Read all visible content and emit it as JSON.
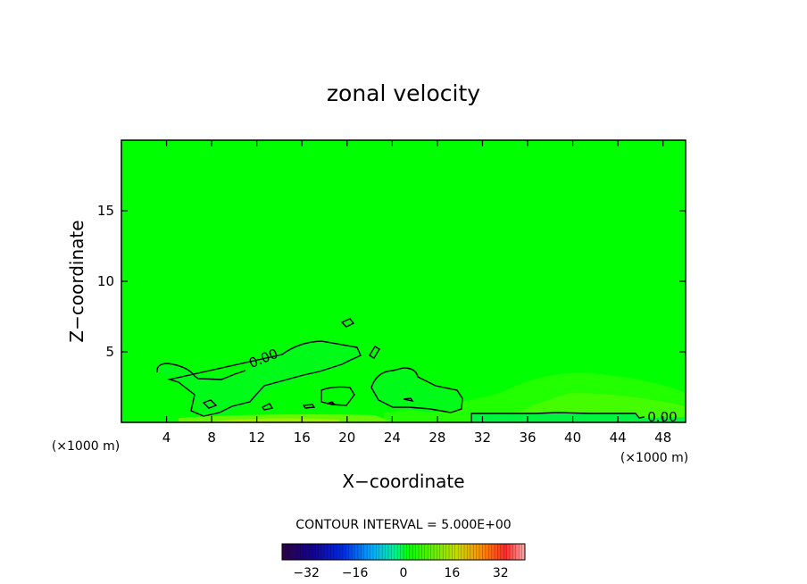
{
  "chart_data": {
    "type": "heatmap",
    "title": "zonal velocity",
    "xlabel": "X−coordinate",
    "ylabel": "Z−coordinate",
    "x_unit": "(×1000 m)",
    "x_unit_right": "(×1000 m)",
    "xlim": [
      0,
      50
    ],
    "ylim": [
      0,
      20
    ],
    "x_ticks": [
      4,
      8,
      12,
      16,
      20,
      24,
      28,
      32,
      36,
      40,
      44,
      48
    ],
    "x_tick_labels": [
      "4",
      "8",
      "12",
      "16",
      "20",
      "24",
      "28",
      "32",
      "36",
      "40",
      "44",
      "48"
    ],
    "y_ticks": [
      5,
      10,
      15
    ],
    "y_tick_labels": [
      "5",
      "10",
      "15"
    ],
    "contour_labels": [
      "0.00",
      "0.00"
    ],
    "contour_interval_text": "CONTOUR INTERVAL = 5.000E+00",
    "colorbar": {
      "range": [
        -40,
        40
      ],
      "ticks": [
        -32,
        -16,
        0,
        16,
        32
      ],
      "tick_labels": [
        "−32",
        "−16",
        "0",
        "16",
        "32"
      ]
    },
    "field_range_approx": [
      -4,
      4
    ],
    "colors": {
      "background_field": "#00ff00",
      "contour_line": "#000000"
    }
  }
}
